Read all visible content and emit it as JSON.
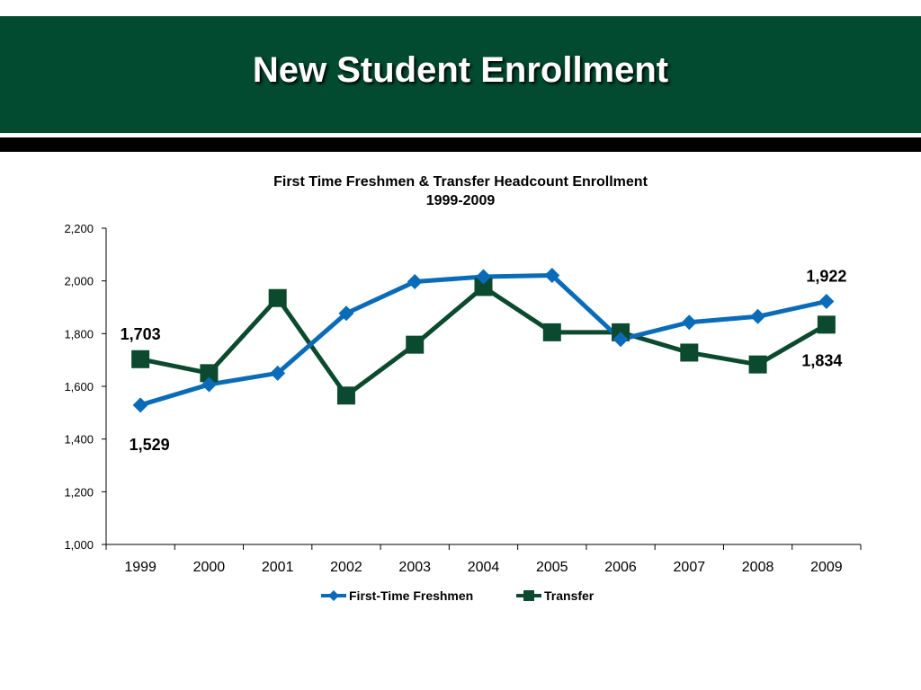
{
  "slide": {
    "title": "New Student Enrollment"
  },
  "colors": {
    "band": "#024b30",
    "freshmen": "#0a6cb8",
    "transfer": "#0b4a2e"
  },
  "chart_data": {
    "type": "line",
    "title": "First Time Freshmen & Transfer Headcount Enrollment",
    "subtitle": "1999-2009",
    "xlabel": "",
    "ylabel": "",
    "x": [
      "1999",
      "2000",
      "2001",
      "2002",
      "2003",
      "2004",
      "2005",
      "2006",
      "2007",
      "2008",
      "2009"
    ],
    "ylim": [
      1000,
      2200
    ],
    "yticks": [
      1000,
      1200,
      1400,
      1600,
      1800,
      2000,
      2200
    ],
    "ytick_labels": [
      "1,000",
      "1,200",
      "1,400",
      "1,600",
      "1,800",
      "2,000",
      "2,200"
    ],
    "grid": false,
    "legend_position": "bottom",
    "series": [
      {
        "name": "First-Time Freshmen",
        "marker": "diamond",
        "color": "#0a6cb8",
        "values": [
          1529,
          1607,
          1650,
          1877,
          1997,
          2016,
          2021,
          1778,
          1843,
          1865,
          1922
        ]
      },
      {
        "name": "Transfer",
        "marker": "square",
        "color": "#0b4a2e",
        "values": [
          1703,
          1650,
          1935,
          1565,
          1758,
          1977,
          1805,
          1805,
          1728,
          1683,
          1834
        ]
      }
    ],
    "annotations": [
      {
        "text": "1,703",
        "series": 1,
        "index": 0,
        "position": "above-left"
      },
      {
        "text": "1,529",
        "series": 0,
        "index": 0,
        "position": "below"
      },
      {
        "text": "1,922",
        "series": 0,
        "index": 10,
        "position": "above"
      },
      {
        "text": "1,834",
        "series": 1,
        "index": 10,
        "position": "below"
      }
    ]
  }
}
